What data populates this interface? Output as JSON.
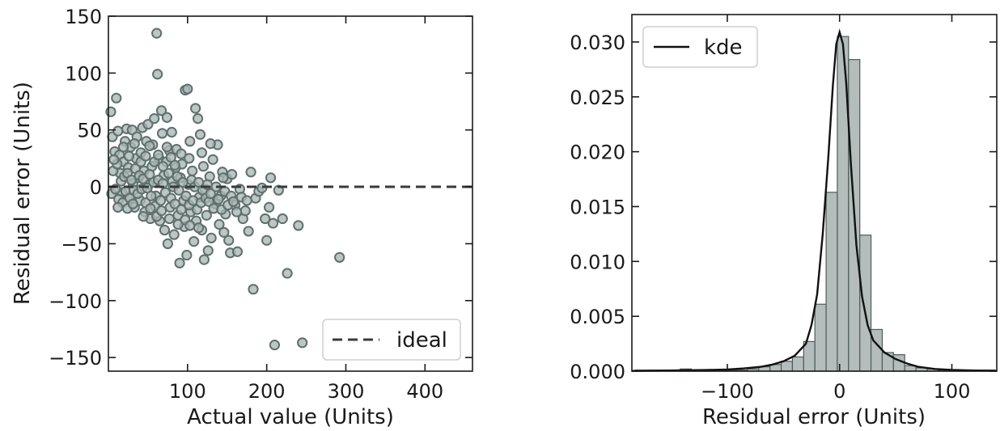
{
  "chart_data": [
    {
      "type": "scatter",
      "title": "",
      "xlabel": "Actual value (Units)",
      "ylabel": "Residual error (Units)",
      "xlim": [
        0,
        460
      ],
      "ylim": [
        -162,
        150
      ],
      "xticks": [
        100,
        200,
        300,
        400
      ],
      "xtick_labels": [
        "100",
        "200",
        "300",
        "400"
      ],
      "yticks": [
        -150,
        -100,
        -50,
        0,
        50,
        100,
        150
      ],
      "ytick_labels": [
        "−150",
        "−100",
        "−50",
        "0",
        "50",
        "100",
        "150"
      ],
      "grid": false,
      "point_color": "#a9b6b4",
      "point_edge_color": "#5f706e",
      "reference_line": {
        "label": "ideal",
        "y": 0,
        "style": "dashed",
        "color": "#3a3a3a"
      },
      "legend": {
        "position": "bottom-right",
        "entries": [
          "ideal"
        ]
      },
      "points": [
        [
          3,
          66
        ],
        [
          5,
          44
        ],
        [
          8,
          31
        ],
        [
          10,
          78
        ],
        [
          12,
          49
        ],
        [
          14,
          28
        ],
        [
          15,
          12
        ],
        [
          17,
          -5
        ],
        [
          19,
          22
        ],
        [
          21,
          40
        ],
        [
          23,
          51
        ],
        [
          25,
          17
        ],
        [
          26,
          -9
        ],
        [
          28,
          35
        ],
        [
          30,
          50
        ],
        [
          31,
          3
        ],
        [
          33,
          -18
        ],
        [
          35,
          25
        ],
        [
          36,
          44
        ],
        [
          38,
          8
        ],
        [
          40,
          -12
        ],
        [
          41,
          30
        ],
        [
          43,
          52
        ],
        [
          45,
          14
        ],
        [
          46,
          -22
        ],
        [
          48,
          40
        ],
        [
          50,
          55
        ],
        [
          51,
          2
        ],
        [
          53,
          -28
        ],
        [
          55,
          18
        ],
        [
          56,
          37
        ],
        [
          58,
          60
        ],
        [
          60,
          -8
        ],
        [
          61,
          135
        ],
        [
          62,
          99
        ],
        [
          64,
          25
        ],
        [
          65,
          -30
        ],
        [
          67,
          67
        ],
        [
          68,
          47
        ],
        [
          70,
          10
        ],
        [
          71,
          -38
        ],
        [
          73,
          22
        ],
        [
          74,
          61
        ],
        [
          75,
          -50
        ],
        [
          77,
          32
        ],
        [
          78,
          -18
        ],
        [
          80,
          48
        ],
        [
          81,
          5
        ],
        [
          83,
          -42
        ],
        [
          85,
          17
        ],
        [
          86,
          33
        ],
        [
          88,
          -25
        ],
        [
          90,
          -67
        ],
        [
          91,
          8
        ],
        [
          93,
          20
        ],
        [
          95,
          -12
        ],
        [
          96,
          -35
        ],
        [
          97,
          85
        ],
        [
          99,
          -60
        ],
        [
          100,
          86
        ],
        [
          101,
          2
        ],
        [
          103,
          40
        ],
        [
          104,
          -22
        ],
        [
          106,
          14
        ],
        [
          108,
          -48
        ],
        [
          110,
          69
        ],
        [
          111,
          -30
        ],
        [
          113,
          60
        ],
        [
          115,
          -9
        ],
        [
          116,
          46
        ],
        [
          118,
          -38
        ],
        [
          120,
          18
        ],
        [
          121,
          -64
        ],
        [
          122,
          -2
        ],
        [
          124,
          -25
        ],
        [
          126,
          -56
        ],
        [
          128,
          9
        ],
        [
          130,
          -45
        ],
        [
          132,
          24
        ],
        [
          135,
          -15
        ],
        [
          138,
          37
        ],
        [
          140,
          -33
        ],
        [
          142,
          -8
        ],
        [
          144,
          13
        ],
        [
          146,
          -40
        ],
        [
          148,
          -24
        ],
        [
          150,
          7
        ],
        [
          152,
          -47
        ],
        [
          154,
          -58
        ],
        [
          156,
          11
        ],
        [
          160,
          -16
        ],
        [
          163,
          -57
        ],
        [
          166,
          -2
        ],
        [
          170,
          -28
        ],
        [
          173,
          -21
        ],
        [
          177,
          -39
        ],
        [
          180,
          13
        ],
        [
          183,
          -90
        ],
        [
          186,
          -10
        ],
        [
          190,
          -4
        ],
        [
          194,
          -1
        ],
        [
          198,
          -28
        ],
        [
          200,
          -47
        ],
        [
          203,
          -18
        ],
        [
          205,
          8
        ],
        [
          208,
          -32
        ],
        [
          210,
          -139
        ],
        [
          215,
          -3
        ],
        [
          220,
          -28
        ],
        [
          226,
          -76
        ],
        [
          240,
          -34
        ],
        [
          245,
          -137
        ],
        [
          292,
          -62
        ],
        [
          4,
          -6
        ],
        [
          6,
          14
        ],
        [
          9,
          -2
        ],
        [
          11,
          20
        ],
        [
          13,
          -11
        ],
        [
          16,
          5
        ],
        [
          18,
          -14
        ],
        [
          20,
          9
        ],
        [
          22,
          -4
        ],
        [
          24,
          12
        ],
        [
          27,
          -10
        ],
        [
          29,
          6
        ],
        [
          32,
          -3
        ],
        [
          34,
          16
        ],
        [
          37,
          -6
        ],
        [
          39,
          10
        ],
        [
          42,
          -2
        ],
        [
          44,
          7
        ],
        [
          47,
          -14
        ],
        [
          49,
          -1
        ],
        [
          52,
          11
        ],
        [
          54,
          -8
        ],
        [
          57,
          4
        ],
        [
          59,
          -17
        ],
        [
          63,
          6
        ],
        [
          66,
          -12
        ],
        [
          69,
          3
        ],
        [
          72,
          -5
        ],
        [
          76,
          12
        ],
        [
          79,
          -10
        ],
        [
          82,
          0
        ],
        [
          84,
          -15
        ],
        [
          87,
          9
        ],
        [
          89,
          -3
        ],
        [
          92,
          -20
        ],
        [
          94,
          4
        ],
        [
          98,
          -8
        ],
        [
          102,
          -16
        ],
        [
          105,
          6
        ],
        [
          107,
          -12
        ],
        [
          109,
          0
        ],
        [
          112,
          -20
        ],
        [
          114,
          4
        ],
        [
          117,
          -14
        ],
        [
          119,
          -3
        ],
        [
          123,
          -10
        ],
        [
          125,
          2
        ],
        [
          127,
          -13
        ],
        [
          129,
          -6
        ],
        [
          133,
          -19
        ],
        [
          136,
          0
        ],
        [
          139,
          -11
        ],
        [
          143,
          -20
        ],
        [
          147,
          -4
        ],
        [
          151,
          -16
        ],
        [
          155,
          -8
        ],
        [
          158,
          -13
        ],
        [
          162,
          -22
        ],
        [
          168,
          -9
        ],
        [
          175,
          -12
        ],
        [
          7,
          24
        ],
        [
          19,
          35
        ],
        [
          26,
          27
        ],
        [
          33,
          38
        ],
        [
          41,
          22
        ],
        [
          47,
          27
        ],
        [
          52,
          36
        ],
        [
          58,
          22
        ],
        [
          63,
          28
        ],
        [
          69,
          18
        ],
        [
          74,
          35
        ],
        [
          79,
          26
        ],
        [
          84,
          19
        ],
        [
          92,
          29
        ],
        [
          102,
          25
        ],
        [
          118,
          30
        ],
        [
          129,
          38
        ],
        [
          145,
          8
        ],
        [
          12,
          -18
        ],
        [
          24,
          -19
        ],
        [
          31,
          -15
        ],
        [
          44,
          -26
        ],
        [
          53,
          -19
        ],
        [
          61,
          -26
        ],
        [
          67,
          -21
        ],
        [
          77,
          -28
        ],
        [
          88,
          -33
        ],
        [
          97,
          -29
        ],
        [
          103,
          -34
        ],
        [
          114,
          -36
        ]
      ]
    },
    {
      "type": "bar",
      "title": "",
      "xlabel": "Residual error (Units)",
      "ylabel": "",
      "xlim": [
        -185,
        140
      ],
      "ylim": [
        0,
        0.0325
      ],
      "xticks": [
        -100,
        0,
        100
      ],
      "xtick_labels": [
        "−100",
        "0",
        "100"
      ],
      "yticks": [
        0.0,
        0.005,
        0.01,
        0.015,
        0.02,
        0.025,
        0.03
      ],
      "ytick_labels": [
        "0.000",
        "0.005",
        "0.010",
        "0.015",
        "0.020",
        "0.025",
        "0.030"
      ],
      "grid": false,
      "bar_color": "#b4bdbb",
      "bar_edge_color": "#4b5d5a",
      "kde_color": "#111111",
      "legend": {
        "position": "top-left",
        "entries": [
          "kde"
        ]
      },
      "bin_edges": [
        -182,
        -172,
        -162,
        -152,
        -142,
        -132,
        -122,
        -112,
        -102,
        -92,
        -82,
        -72,
        -62,
        -52,
        -42,
        -32,
        -22,
        -12,
        -2,
        8,
        18,
        28,
        38,
        48,
        58,
        68,
        78,
        88,
        98,
        108,
        118,
        128,
        138
      ],
      "values": [
        0.0001,
        0.0001,
        0.0001,
        0.0001,
        0.0002,
        0.0001,
        0.0001,
        0.0001,
        0.0001,
        0.0001,
        0.0002,
        0.0004,
        0.0006,
        0.0009,
        0.0013,
        0.0027,
        0.0061,
        0.0163,
        0.0305,
        0.0284,
        0.0124,
        0.0038,
        0.0017,
        0.0015,
        0.0005,
        0.0003,
        0.0002,
        0.0001,
        0.0001,
        0.0001,
        0.0001,
        0.0001
      ],
      "kde": {
        "x": [
          -185,
          -160,
          -140,
          -120,
          -100,
          -85,
          -70,
          -60,
          -50,
          -40,
          -30,
          -25,
          -20,
          -15,
          -10,
          -6,
          -3,
          0,
          3,
          6,
          10,
          15,
          20,
          25,
          30,
          40,
          50,
          60,
          70,
          85,
          100,
          120,
          140
        ],
        "y": [
          2e-05,
          5e-05,
          8e-05,
          0.0001,
          0.00015,
          0.00025,
          0.0004,
          0.0006,
          0.0009,
          0.0014,
          0.0025,
          0.0042,
          0.007,
          0.0125,
          0.0195,
          0.026,
          0.0298,
          0.0309,
          0.0298,
          0.0262,
          0.019,
          0.0115,
          0.0068,
          0.0042,
          0.0028,
          0.0017,
          0.0011,
          0.0007,
          0.0004,
          0.0002,
          0.00012,
          6e-05,
          3e-05
        ]
      }
    }
  ]
}
